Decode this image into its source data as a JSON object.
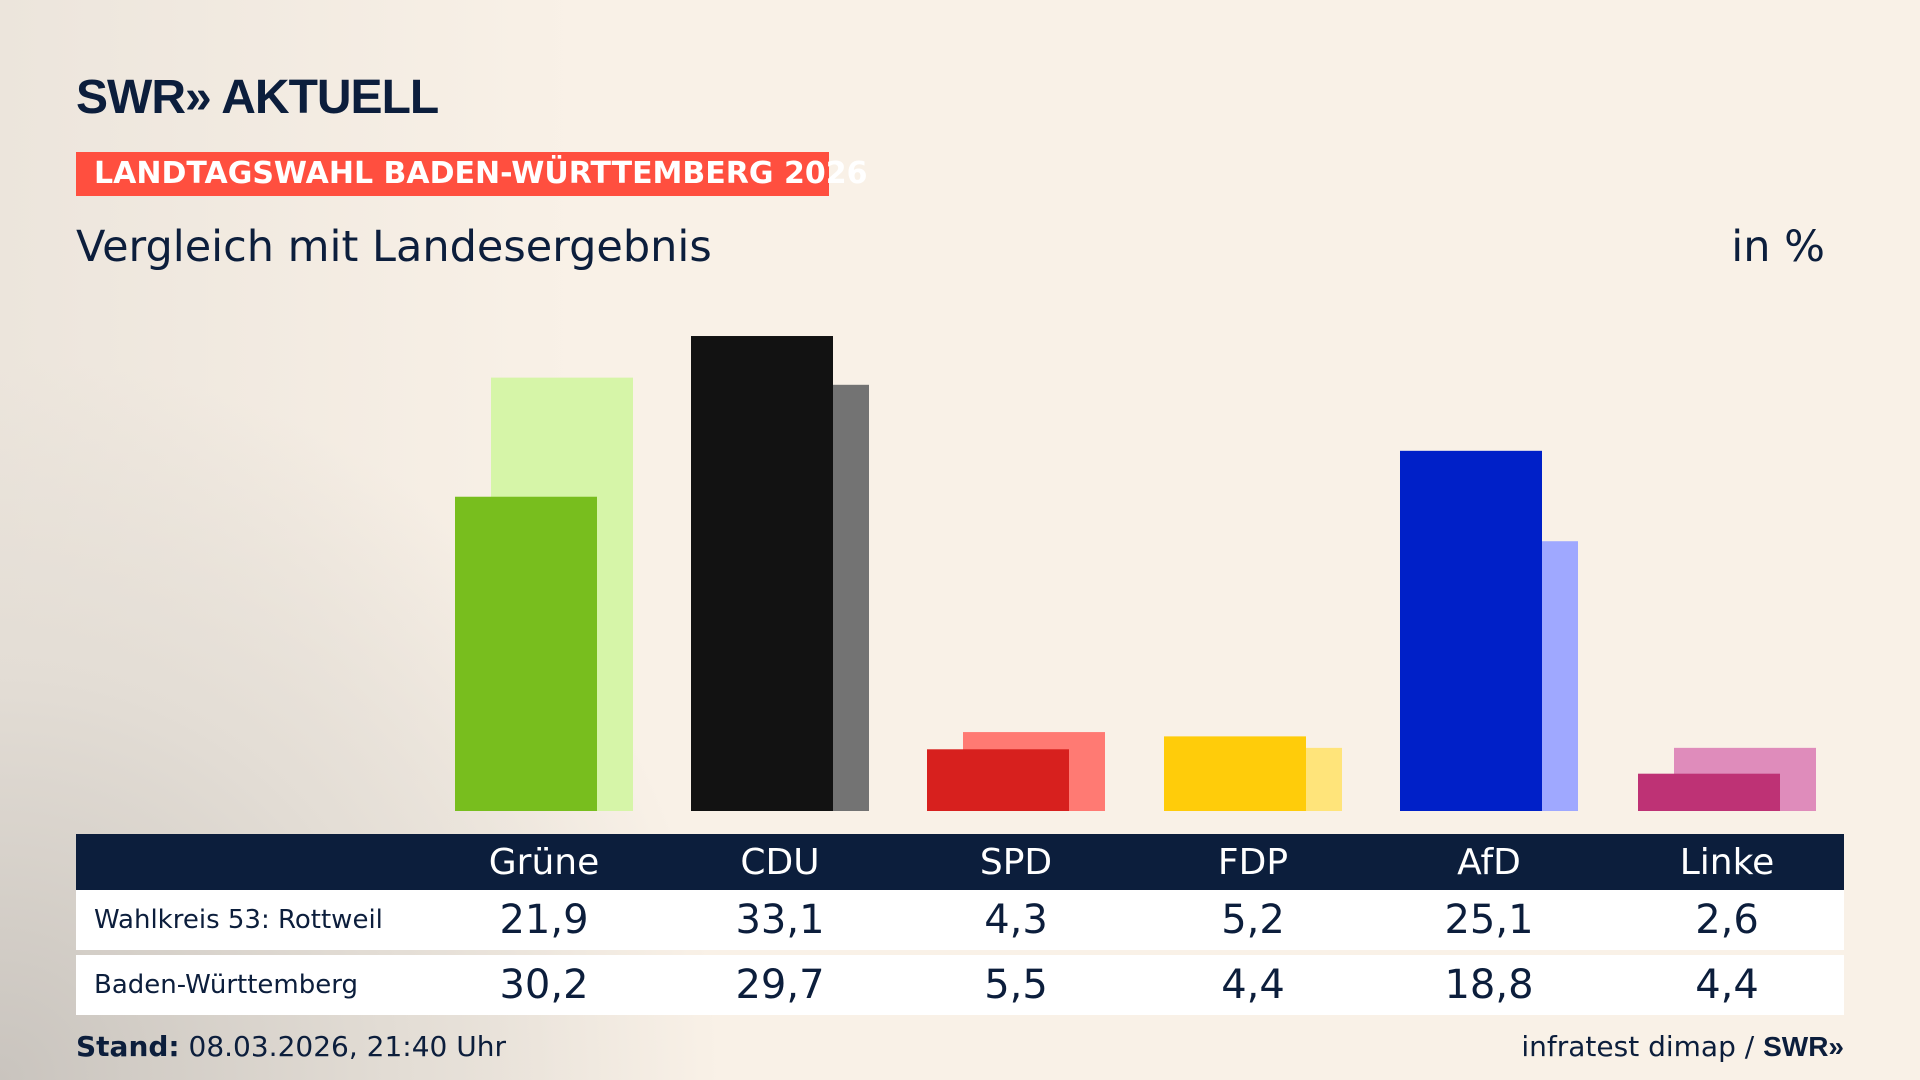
{
  "header": {
    "logo": "SWR» AKTUELL",
    "banner": "LANDTAGSWAHL BADEN-WÜRTTEMBERG 2026",
    "subtitle": "Vergleich mit Landesergebnis",
    "unit": "in %"
  },
  "chart_data": {
    "type": "bar",
    "categories": [
      "Grüne",
      "CDU",
      "SPD",
      "FDP",
      "AfD",
      "Linke"
    ],
    "series": [
      {
        "name": "Wahlkreis 53: Rottweil",
        "values": [
          21.9,
          33.1,
          4.3,
          5.2,
          25.1,
          2.6
        ],
        "display": [
          "21,9",
          "33,1",
          "4,3",
          "5,2",
          "25,1",
          "2,6"
        ]
      },
      {
        "name": "Baden-Württemberg",
        "values": [
          30.2,
          29.7,
          5.5,
          4.4,
          18.8,
          4.4
        ],
        "display": [
          "30,2",
          "29,7",
          "5,5",
          "4,4",
          "18,8",
          "4,4"
        ]
      }
    ],
    "colors": {
      "primary": [
        "#78be1e",
        "#121212",
        "#d7201e",
        "#ffcc0a",
        "#0020c8",
        "#be3275"
      ],
      "secondary": [
        "#d6f5a8",
        "#737373",
        "#ff7a73",
        "#ffe47a",
        "#9fa8ff",
        "#df8cbb"
      ]
    },
    "grid": false
  },
  "footer": {
    "stand_label": "Stand:",
    "stand_value": " 08.03.2026, 21:40 Uhr",
    "source": "infratest dimap / ",
    "source_logo": "SWR»"
  },
  "colors": {
    "navy": "#0c1e3c",
    "banner": "#ff4f3f"
  }
}
